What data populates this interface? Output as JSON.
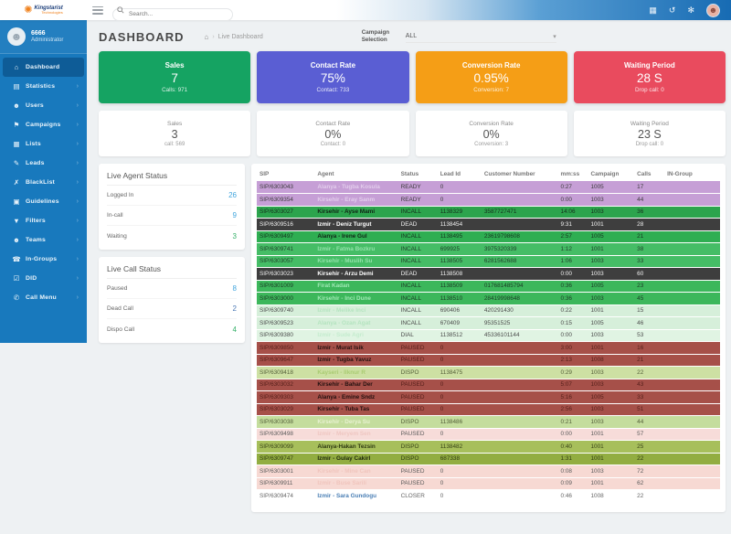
{
  "topbar": {
    "logo": {
      "line1": "Kingstarist",
      "line2": "Technologies"
    },
    "search_placeholder": "Search...",
    "icons": [
      {
        "name": "keyboard-icon",
        "glyph": "▦"
      },
      {
        "name": "history-icon",
        "glyph": "↺"
      },
      {
        "name": "settings-icon",
        "glyph": "✻"
      }
    ]
  },
  "sidebar": {
    "user": {
      "id": "6666",
      "role": "Administrator"
    },
    "items": [
      {
        "label": "Dashboard",
        "icon": "⌂",
        "active": true,
        "chevron": false
      },
      {
        "label": "Statistics",
        "icon": "▤",
        "active": false,
        "chevron": true
      },
      {
        "label": "Users",
        "icon": "☻",
        "active": false,
        "chevron": true
      },
      {
        "label": "Campaigns",
        "icon": "⚑",
        "active": false,
        "chevron": true
      },
      {
        "label": "Lists",
        "icon": "▦",
        "active": false,
        "chevron": true
      },
      {
        "label": "Leads",
        "icon": "✎",
        "active": false,
        "chevron": true
      },
      {
        "label": "BlackList",
        "icon": "✗",
        "active": false,
        "chevron": true
      },
      {
        "label": "Guidelines",
        "icon": "▣",
        "active": false,
        "chevron": true
      },
      {
        "label": "Filters",
        "icon": "▼",
        "active": false,
        "chevron": true
      },
      {
        "label": "Teams",
        "icon": "☻",
        "active": false,
        "chevron": true
      },
      {
        "label": "In-Groups",
        "icon": "☎",
        "active": false,
        "chevron": true
      },
      {
        "label": "DID",
        "icon": "☑",
        "active": false,
        "chevron": true
      },
      {
        "label": "Call Menu",
        "icon": "✆",
        "active": false,
        "chevron": true
      }
    ]
  },
  "header": {
    "title": "DASHBOARD",
    "breadcrumb": "Live Dashboard",
    "campaign_label": "Campaign Selection",
    "campaign_value": "ALL"
  },
  "stat_cards": [
    {
      "title": "Sales",
      "value": "7",
      "subtitle": "Calls: 971",
      "color": "#15a362"
    },
    {
      "title": "Contact Rate",
      "value": "75%",
      "subtitle": "Contact: 733",
      "color": "#5a5ed3"
    },
    {
      "title": "Conversion Rate",
      "value": "0.95%",
      "subtitle": "Conversion: 7",
      "color": "#f59e16"
    },
    {
      "title": "Waiting Period",
      "value": "28 S",
      "subtitle": "Drop call: 0",
      "color": "#e94b5e"
    }
  ],
  "summary_cards": [
    {
      "title": "Sales",
      "value": "3",
      "subtitle": "call: 569"
    },
    {
      "title": "Contact Rate",
      "value": "0%",
      "subtitle": "Contact: 0"
    },
    {
      "title": "Conversion Rate",
      "value": "0%",
      "subtitle": "Conversion: 3"
    },
    {
      "title": "Waiting Period",
      "value": "23 S",
      "subtitle": "Drop call: 0"
    }
  ],
  "agent_status": {
    "title": "Live Agent Status",
    "rows": [
      {
        "label": "Logged In",
        "value": "26",
        "color": "#41a5dd"
      },
      {
        "label": "In-call",
        "value": "9",
        "color": "#41a5dd"
      },
      {
        "label": "Waiting",
        "value": "3",
        "color": "#35b068"
      }
    ]
  },
  "call_status": {
    "title": "Live Call Status",
    "rows": [
      {
        "label": "Paused",
        "value": "8",
        "color": "#41a5dd"
      },
      {
        "label": "Dead Call",
        "value": "2",
        "color": "#4a78b5"
      },
      {
        "label": "Dispo Call",
        "value": "4",
        "color": "#35b068"
      }
    ]
  },
  "table": {
    "columns": [
      "SIP",
      "Agent",
      "Status",
      "Lead Id",
      "Customer Number",
      "mm:ss",
      "Campaign",
      "Calls",
      "IN-Group"
    ],
    "rows": [
      {
        "sip": "SIP/6303043",
        "agent": "Alanya - Tugba Kosula",
        "status": "READY",
        "lead": "0",
        "customer": "",
        "time": "0:27",
        "campaign": "1005",
        "calls": "17",
        "ingroup": "",
        "bg": "#c69fd6",
        "fg": "#3d3d3d",
        "afg": "#e3cdec"
      },
      {
        "sip": "SIP/6309354",
        "agent": "Kirsehir - Eray Sanm",
        "status": "READY",
        "lead": "0",
        "customer": "",
        "time": "0:00",
        "campaign": "1003",
        "calls": "44",
        "ingroup": "",
        "bg": "#c69fd6",
        "fg": "#3d3d3d",
        "afg": "#e3cdec"
      },
      {
        "sip": "SIP/6303027",
        "agent": "Kirsehir - Ayse Mami",
        "status": "INCALL",
        "lead": "1138329",
        "customer": "3587727471",
        "time": "14:06",
        "campaign": "1003",
        "calls": "36",
        "ingroup": "",
        "bg": "#2ca44d",
        "fg": "#15301d",
        "afg": "#102616"
      },
      {
        "sip": "SIP/6309516",
        "agent": "Izmir - Deniz Turgut",
        "status": "DEAD",
        "lead": "1138454",
        "customer": "",
        "time": "9:31",
        "campaign": "1001",
        "calls": "28",
        "ingroup": "",
        "bg": "#3e3e3e",
        "fg": "#f0f0f0",
        "afg": "#ffffff"
      },
      {
        "sip": "SIP/6309497",
        "agent": "Alanya - Irene Gul",
        "status": "INCALL",
        "lead": "1138495",
        "customer": "23619798608",
        "time": "2:57",
        "campaign": "1005",
        "calls": "21",
        "ingroup": "",
        "bg": "#2fae52",
        "fg": "#16331f",
        "afg": "#102616"
      },
      {
        "sip": "SIP/6309741",
        "agent": "Izmir - Fatma Bozkru",
        "status": "INCALL",
        "lead": "699925",
        "customer": "3975320339",
        "time": "1:12",
        "campaign": "1001",
        "calls": "38",
        "ingroup": "",
        "bg": "#45bd66",
        "fg": "#1f4029",
        "afg": "#93e2aa"
      },
      {
        "sip": "SIP/6303057",
        "agent": "Kirsehir - Muslih Su",
        "status": "INCALL",
        "lead": "1138505",
        "customer": "6281562688",
        "time": "1:06",
        "campaign": "1003",
        "calls": "33",
        "ingroup": "",
        "bg": "#45bd66",
        "fg": "#1f4029",
        "afg": "#93e2aa"
      },
      {
        "sip": "SIP/6303023",
        "agent": "Kirsehir - Arzu Demi",
        "status": "DEAD",
        "lead": "1138508",
        "customer": "",
        "time": "0:00",
        "campaign": "1003",
        "calls": "60",
        "ingroup": "",
        "bg": "#3e3e3e",
        "fg": "#f0f0f0",
        "afg": "#ffffff"
      },
      {
        "sip": "SIP/6301009",
        "agent": "Firat Kadan",
        "status": "INCALL",
        "lead": "1138509",
        "customer": "017681485794",
        "time": "0:36",
        "campaign": "1005",
        "calls": "23",
        "ingroup": "",
        "bg": "#3cb75b",
        "fg": "#1c3a25",
        "afg": "#9fe8b4"
      },
      {
        "sip": "SIP/6303000",
        "agent": "Kirsehir - Inci Dune",
        "status": "INCALL",
        "lead": "1138510",
        "customer": "28419998648",
        "time": "0:36",
        "campaign": "1003",
        "calls": "45",
        "ingroup": "",
        "bg": "#3cb75b",
        "fg": "#1c3a25",
        "afg": "#9fe8b4"
      },
      {
        "sip": "SIP/6309740",
        "agent": "Izmir - Melike Inci",
        "status": "INCALL",
        "lead": "690406",
        "customer": "420291430",
        "time": "0:22",
        "campaign": "1001",
        "calls": "15",
        "ingroup": "",
        "bg": "#d6efda",
        "fg": "#4c4c4c",
        "afg": "#b5e4c0"
      },
      {
        "sip": "SIP/6309523",
        "agent": "Alanya - Ozan Agat",
        "status": "INCALL",
        "lead": "670409",
        "customer": "95351525",
        "time": "0:15",
        "campaign": "1005",
        "calls": "46",
        "ingroup": "",
        "bg": "#d6efda",
        "fg": "#4c4c4c",
        "afg": "#b5e4c0"
      },
      {
        "sip": "SIP/6309380",
        "agent": "Izmir - Sude Agri",
        "status": "DIAL",
        "lead": "1138512",
        "customer": "45336101144",
        "time": "0:00",
        "campaign": "1003",
        "calls": "53",
        "ingroup": "",
        "bg": "#e0f4e3",
        "fg": "#4c4c4c",
        "afg": "#c4ecce"
      },
      {
        "sip": "SIP/6309850",
        "agent": "Izmir - Murat Isik",
        "status": "PAUSED",
        "lead": "0",
        "customer": "",
        "time": "3:00",
        "campaign": "1001",
        "calls": "16",
        "ingroup": "",
        "bg": "#a65049",
        "fg": "#56201b",
        "afg": "#241110"
      },
      {
        "sip": "SIP/6309647",
        "agent": "Izmir - Tugba Yavuz",
        "status": "PAUSED",
        "lead": "0",
        "customer": "",
        "time": "2:13",
        "campaign": "1008",
        "calls": "21",
        "ingroup": "",
        "bg": "#a65049",
        "fg": "#56201b",
        "afg": "#241110"
      },
      {
        "sip": "SIP/6309418",
        "agent": "Kayseri - Ilknur R",
        "status": "DISPO",
        "lead": "1138475",
        "customer": "",
        "time": "0:29",
        "campaign": "1003",
        "calls": "22",
        "ingroup": "",
        "bg": "#cde0a3",
        "fg": "#55603a",
        "afg": "#a9cb72"
      },
      {
        "sip": "SIP/6303032",
        "agent": "Kirsehir - Bahar Der",
        "status": "PAUSED",
        "lead": "0",
        "customer": "",
        "time": "5:07",
        "campaign": "1003",
        "calls": "43",
        "ingroup": "",
        "bg": "#a65049",
        "fg": "#56201b",
        "afg": "#241110"
      },
      {
        "sip": "SIP/6309303",
        "agent": "Alanya - Emine Sndz",
        "status": "PAUSED",
        "lead": "0",
        "customer": "",
        "time": "5:16",
        "campaign": "1005",
        "calls": "33",
        "ingroup": "",
        "bg": "#a65049",
        "fg": "#56201b",
        "afg": "#241110"
      },
      {
        "sip": "SIP/6303029",
        "agent": "Kirsehir - Tuba Tas",
        "status": "PAUSED",
        "lead": "0",
        "customer": "",
        "time": "2:56",
        "campaign": "1003",
        "calls": "51",
        "ingroup": "",
        "bg": "#a65049",
        "fg": "#56201b",
        "afg": "#241110"
      },
      {
        "sip": "SIP/6303038",
        "agent": "Kirsehir - Derya Su",
        "status": "DISPO",
        "lead": "1138486",
        "customer": "",
        "time": "0:21",
        "campaign": "1003",
        "calls": "44",
        "ingroup": "",
        "bg": "#c4dd9d",
        "fg": "#55603a",
        "afg": "#e8f2d2"
      },
      {
        "sip": "SIP/6309498",
        "agent": "Izmir - Meryem Sen",
        "status": "PAUSED",
        "lead": "0",
        "customer": "",
        "time": "0:00",
        "campaign": "1001",
        "calls": "57",
        "ingroup": "",
        "bg": "#f7dcd9",
        "fg": "#5c5c5c",
        "afg": "#efc7c2"
      },
      {
        "sip": "SIP/6309099",
        "agent": "Alanya-Hakan Tezsin",
        "status": "DISPO",
        "lead": "1138482",
        "customer": "",
        "time": "0:40",
        "campaign": "1001",
        "calls": "25",
        "ingroup": "",
        "bg": "#a7bf5b",
        "fg": "#394418",
        "afg": "#2f3a12"
      },
      {
        "sip": "SIP/6309747",
        "agent": "Izmir - Gulay Cakirl",
        "status": "DISPO",
        "lead": "687338",
        "customer": "",
        "time": "1:31",
        "campaign": "1001",
        "calls": "22",
        "ingroup": "",
        "bg": "#92ad41",
        "fg": "#313c12",
        "afg": "#202a0c"
      },
      {
        "sip": "SIP/6303001",
        "agent": "Kirsehir - Mine Can",
        "status": "PAUSED",
        "lead": "0",
        "customer": "",
        "time": "0:08",
        "campaign": "1003",
        "calls": "72",
        "ingroup": "",
        "bg": "#f7d9d3",
        "fg": "#5c5c5c",
        "afg": "#f0c5bd"
      },
      {
        "sip": "SIP/6309911",
        "agent": "Izmir - Buse Sarili",
        "status": "PAUSED",
        "lead": "0",
        "customer": "",
        "time": "0:09",
        "campaign": "1001",
        "calls": "62",
        "ingroup": "",
        "bg": "#f7d9d3",
        "fg": "#5c5c5c",
        "afg": "#f0c5bd"
      },
      {
        "sip": "SIP/6309474",
        "agent": "Izmir - Sara Gundogu",
        "status": "CLOSER",
        "lead": "0",
        "customer": "",
        "time": "0:46",
        "campaign": "1008",
        "calls": "22",
        "ingroup": "",
        "bg": "#ffffff",
        "fg": "#666666",
        "afg": "#4a7fb5"
      }
    ]
  }
}
